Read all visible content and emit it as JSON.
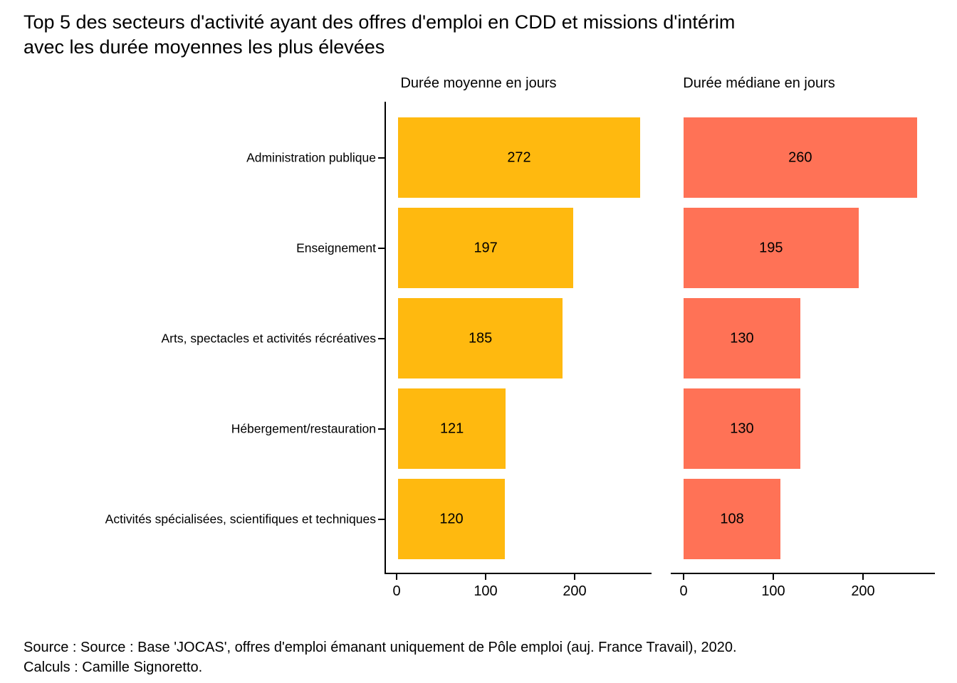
{
  "title": {
    "line1": "Top 5 des secteurs d'activité ayant des offres d'emploi en CDD et missions d'intérim",
    "line2": "avec les durée moyennes les plus élevées"
  },
  "footer": {
    "line1": "Source : Source : Base 'JOCAS', offres d'emploi émanant uniquement de Pôle emploi (auj. France Travail), 2020.",
    "line2": "Calculs : Camille Signoretto."
  },
  "chart_data": {
    "type": "bar",
    "orientation": "horizontal",
    "title": "Top 5 des secteurs d'activité ayant des offres d'emploi en CDD et missions d'intérim avec les durée moyennes les plus élevées",
    "categories": [
      "Administration publique",
      "Enseignement",
      "Arts, spectacles et activités récréatives",
      "Hébergement/restauration",
      "Activités spécialisées, scientifiques et techniques"
    ],
    "series": [
      {
        "name": "Durée moyenne en jours",
        "color": "#FFB90F",
        "values": [
          272,
          197,
          185,
          121,
          120
        ]
      },
      {
        "name": "Durée médiane en jours",
        "color": "#FF7256",
        "values": [
          260,
          195,
          130,
          130,
          108
        ]
      }
    ],
    "xticks": [
      0,
      100,
      200
    ],
    "xlim": [
      0,
      285
    ],
    "value_labels_shown": true,
    "grid": false,
    "legend_position": "none"
  }
}
